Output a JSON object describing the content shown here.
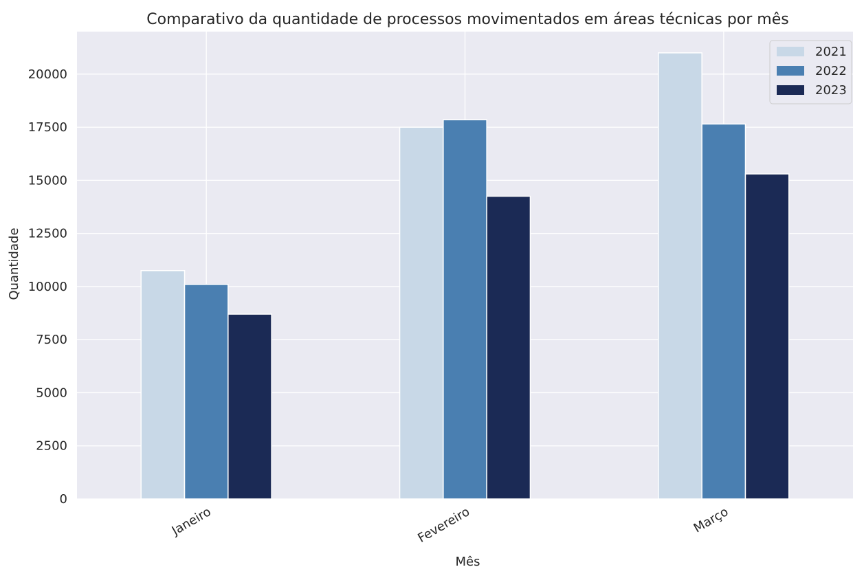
{
  "chart_data": {
    "type": "bar",
    "title": "Comparativo da quantidade de processos movimentados em áreas técnicas por mês",
    "xlabel": "Mês",
    "ylabel": "Quantidade",
    "categories": [
      "Janeiro",
      "Fevereiro",
      "Março"
    ],
    "series": [
      {
        "name": "2021",
        "color": "#c8d8e7",
        "values": [
          10750,
          17500,
          21000
        ]
      },
      {
        "name": "2022",
        "color": "#4a7fb1",
        "values": [
          10100,
          17850,
          17650
        ]
      },
      {
        "name": "2023",
        "color": "#1b2a55",
        "values": [
          8700,
          14250,
          15300
        ]
      }
    ],
    "ylim": [
      0,
      22000
    ],
    "yticks": [
      0,
      2500,
      5000,
      7500,
      10000,
      12500,
      15000,
      17500,
      20000
    ],
    "grid": true,
    "legend_position": "top-right",
    "background_color": "#eaeaf2",
    "grid_color": "#ffffff"
  }
}
